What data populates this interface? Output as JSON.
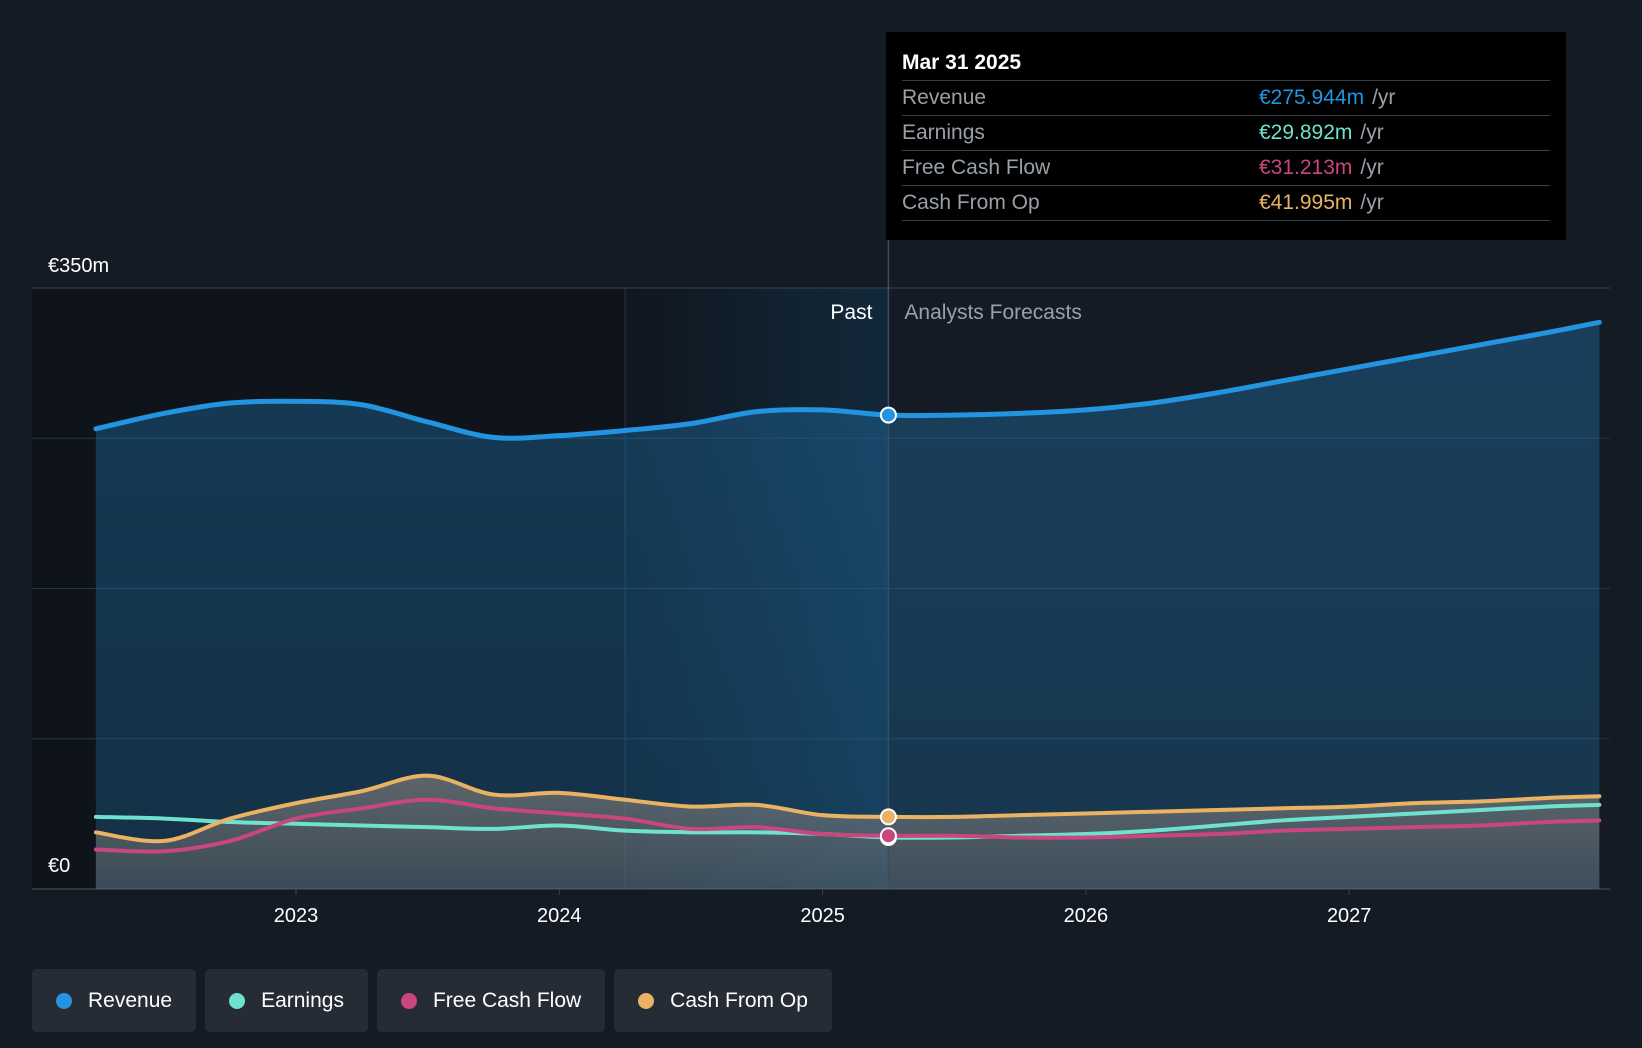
{
  "chart_data": {
    "type": "area",
    "y_axis": {
      "min_label": "€0",
      "max_label": "€350m",
      "ylim": [
        0,
        350
      ]
    },
    "x_ticks": [
      "2023",
      "2024",
      "2025",
      "2026",
      "2027"
    ],
    "x_range": [
      2022.24,
      2027.95
    ],
    "past_label": "Past",
    "forecast_label": "Analysts Forecasts",
    "divider_x": 2025.25,
    "shaded_start_x": 2024.25,
    "series": [
      {
        "name": "Revenue",
        "color": "#2394df",
        "x": [
          2022.24,
          2022.5,
          2022.75,
          2023.0,
          2023.25,
          2023.5,
          2023.75,
          2024.0,
          2024.25,
          2024.5,
          2024.75,
          2025.0,
          2025.25,
          2025.5,
          2025.75,
          2026.0,
          2026.25,
          2026.5,
          2026.75,
          2027.0,
          2027.25,
          2027.5,
          2027.75,
          2027.95
        ],
        "values": [
          268,
          277,
          283,
          284,
          282,
          272,
          263,
          264,
          267,
          271,
          278,
          279,
          276,
          276,
          277,
          279,
          283,
          289,
          296,
          303,
          310,
          317,
          324,
          330
        ]
      },
      {
        "name": "Earnings",
        "color": "#6ee1cf",
        "x": [
          2022.24,
          2022.5,
          2022.75,
          2023.0,
          2023.25,
          2023.5,
          2023.75,
          2024.0,
          2024.25,
          2024.5,
          2024.75,
          2025.0,
          2025.25,
          2025.5,
          2025.75,
          2026.0,
          2026.25,
          2026.5,
          2026.75,
          2027.0,
          2027.25,
          2027.5,
          2027.75,
          2027.95
        ],
        "values": [
          42,
          41,
          39,
          38,
          37,
          36,
          35,
          37,
          34,
          33,
          33,
          32,
          30,
          30,
          31,
          32,
          34,
          37,
          40,
          42,
          44,
          46,
          48,
          49
        ]
      },
      {
        "name": "Free Cash Flow",
        "color": "#c9467e",
        "x": [
          2022.24,
          2022.5,
          2022.75,
          2023.0,
          2023.25,
          2023.5,
          2023.75,
          2024.0,
          2024.25,
          2024.5,
          2024.75,
          2025.0,
          2025.25,
          2025.5,
          2025.75,
          2026.0,
          2026.25,
          2026.5,
          2026.75,
          2027.0,
          2027.25,
          2027.5,
          2027.75,
          2027.95
        ],
        "values": [
          23,
          22,
          28,
          41,
          47,
          52,
          47,
          44,
          41,
          35,
          36,
          32,
          31,
          31,
          30,
          30,
          31,
          32,
          34,
          35,
          36,
          37,
          39,
          40
        ]
      },
      {
        "name": "Cash From Op",
        "color": "#eab364",
        "x": [
          2022.24,
          2022.5,
          2022.75,
          2023.0,
          2023.25,
          2023.5,
          2023.75,
          2024.0,
          2024.25,
          2024.5,
          2024.75,
          2025.0,
          2025.25,
          2025.5,
          2025.75,
          2026.0,
          2026.25,
          2026.5,
          2026.75,
          2027.0,
          2027.25,
          2027.5,
          2027.75,
          2027.95
        ],
        "values": [
          33,
          28,
          41,
          50,
          57,
          66,
          55,
          56,
          52,
          48,
          49,
          43,
          42,
          42,
          43,
          44,
          45,
          46,
          47,
          48,
          50,
          51,
          53,
          54
        ]
      }
    ],
    "highlight": {
      "x": 2025.25
    }
  },
  "tooltip": {
    "date": "Mar 31 2025",
    "unit": "/yr",
    "rows": [
      {
        "label": "Revenue",
        "value": "€275.944m",
        "color": "#2394df"
      },
      {
        "label": "Earnings",
        "value": "€29.892m",
        "color": "#6ee1cf"
      },
      {
        "label": "Free Cash Flow",
        "value": "€31.213m",
        "color": "#c9467e"
      },
      {
        "label": "Cash From Op",
        "value": "€41.995m",
        "color": "#eab364"
      }
    ]
  },
  "legend": [
    {
      "label": "Revenue",
      "color": "#2394df"
    },
    {
      "label": "Earnings",
      "color": "#6ee1cf"
    },
    {
      "label": "Free Cash Flow",
      "color": "#c9467e"
    },
    {
      "label": "Cash From Op",
      "color": "#eab364"
    }
  ]
}
